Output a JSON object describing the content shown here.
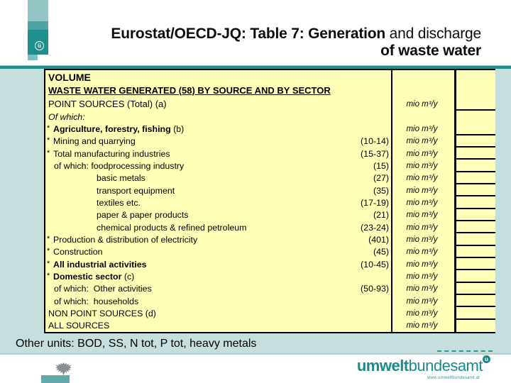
{
  "header": {
    "title_bold": "Eurostat/OECD-JQ: Table 7: Generation",
    "title_rest": " and discharge",
    "title_line2": "of waste water",
    "logo_mark": "ü"
  },
  "colors": {
    "teal_dark": "#1F8E8E",
    "teal_mid": "#4FA3A3",
    "teal_light": "#94C6C6",
    "slide_background": "#C6DEDE",
    "table_background": "#FFFFB8",
    "brand_text": "#1B8A8A"
  },
  "table": {
    "unit_label": "mio m³/y",
    "rows": [
      {
        "label": "VOLUME",
        "bold": true
      },
      {
        "label": "WASTE WATER GENERATED (58) BY SOURCE AND BY SECTOR",
        "bold": true,
        "underline": true
      },
      {
        "label": "POINT SOURCES (Total) (a)",
        "unit": "mio m³/y"
      },
      {
        "label": "Of which:",
        "italic": true
      },
      {
        "prefix": "*",
        "label": "Agriculture, forestry, fishing",
        "suffix": " (b)",
        "bold": true,
        "unit": "mio m³/y"
      },
      {
        "prefix": "*",
        "label": "Mining and quarrying",
        "code": "(10-14)",
        "unit": "mio m³/y"
      },
      {
        "prefix": "*",
        "label": "Total manufacturing industries",
        "code": "(15-37)",
        "unit": "mio m³/y"
      },
      {
        "label": "of which: foodprocessing industry",
        "indent": 1,
        "code": "(15)",
        "unit": "mio m³/y"
      },
      {
        "label": "basic metals",
        "indent": 2,
        "code": "(27)",
        "unit": "mio m³/y"
      },
      {
        "label": "transport equipment",
        "indent": 2,
        "code": "(35)",
        "unit": "mio m³/y"
      },
      {
        "label": "textiles etc.",
        "indent": 2,
        "code": "(17-19)",
        "unit": "mio m³/y"
      },
      {
        "label": "paper & paper products",
        "indent": 2,
        "code": "(21)",
        "unit": "mio m³/y"
      },
      {
        "label": "chemical products & refined petroleum",
        "indent": 2,
        "code": "(23-24)",
        "unit": "mio m³/y"
      },
      {
        "prefix": "*",
        "label": "Production & distribution of electricity",
        "code": "(401)",
        "unit": "mio m³/y"
      },
      {
        "prefix": "*",
        "label": "Construction",
        "code": "(45)",
        "unit": "mio m³/y"
      },
      {
        "prefix": "*",
        "label": "All industrial activities",
        "bold": true,
        "code": "(10-45)",
        "unit": "mio m³/y"
      },
      {
        "prefix": "*",
        "label": "Domestic sector",
        "suffix": " (c)",
        "bold": true,
        "unit": "mio m³/y"
      },
      {
        "label": "of which:  Other activities",
        "indent": 1,
        "code": "(50-93)",
        "unit": "mio m³/y"
      },
      {
        "label": "of which:  households",
        "indent": 1,
        "unit": "mio m³/y"
      },
      {
        "label": "NON POINT SOURCES (d)",
        "unit": "mio m³/y"
      },
      {
        "label": "ALL SOURCES",
        "unit": "mio m³/y"
      }
    ],
    "value_cell_row_spans": [
      3,
      2,
      1,
      1,
      1,
      1,
      1,
      1,
      1,
      1,
      1,
      1,
      1,
      1,
      1,
      1,
      1,
      1
    ]
  },
  "footer": {
    "other_units": "Other units: BOD, SS, N tot, P tot, heavy metals"
  },
  "brand": {
    "name_bold": "umwelt",
    "name_light": "bundesamt",
    "mark": "u",
    "url": "www.umweltbundesamt.at"
  }
}
